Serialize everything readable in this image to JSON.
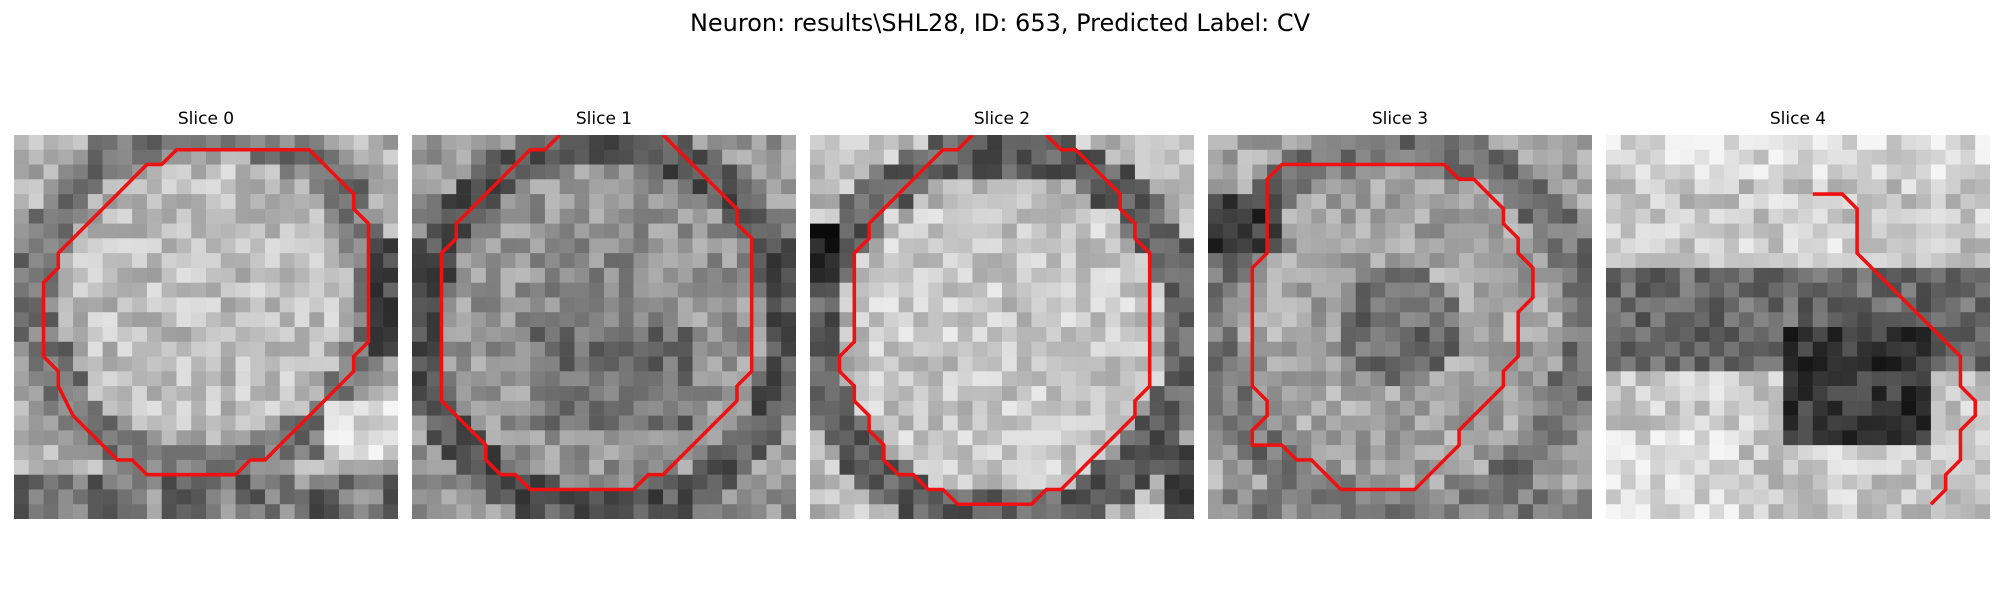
{
  "title": "Neuron: results\\SHL28, ID: 653, Predicted Label: CV",
  "contour_color": "#ee1111",
  "slices": [
    {
      "title": "Slice 0",
      "image": "grayscale-microscopy-patch",
      "contour": [
        [
          14,
          1
        ],
        [
          17,
          1
        ],
        [
          20,
          1
        ],
        [
          21,
          2
        ],
        [
          22,
          3
        ],
        [
          23,
          4
        ],
        [
          23,
          5
        ],
        [
          24,
          6
        ],
        [
          24,
          7
        ],
        [
          24,
          8
        ],
        [
          24,
          9
        ],
        [
          24,
          10
        ],
        [
          24,
          11
        ],
        [
          24,
          12
        ],
        [
          24,
          13
        ],
        [
          24,
          14
        ],
        [
          23,
          15
        ],
        [
          23,
          16
        ],
        [
          22,
          17
        ],
        [
          21,
          18
        ],
        [
          20,
          19
        ],
        [
          19,
          20
        ],
        [
          18,
          21
        ],
        [
          17,
          22
        ],
        [
          16,
          22
        ],
        [
          15,
          23
        ],
        [
          14,
          23
        ],
        [
          13,
          23
        ],
        [
          12,
          23
        ],
        [
          11,
          23
        ],
        [
          10,
          23
        ],
        [
          9,
          23
        ],
        [
          8,
          22
        ],
        [
          7,
          22
        ],
        [
          6,
          21
        ],
        [
          5,
          20
        ],
        [
          4,
          19
        ],
        [
          3,
          17
        ],
        [
          3,
          16
        ],
        [
          2,
          15
        ],
        [
          2,
          14
        ],
        [
          2,
          13
        ],
        [
          2,
          12
        ],
        [
          2,
          11
        ],
        [
          2,
          10
        ],
        [
          3,
          9
        ],
        [
          3,
          8
        ],
        [
          4,
          7
        ],
        [
          5,
          6
        ],
        [
          6,
          5
        ],
        [
          7,
          4
        ],
        [
          8,
          3
        ],
        [
          9,
          2
        ],
        [
          10,
          2
        ],
        [
          11,
          1
        ],
        [
          12,
          1
        ],
        [
          14,
          1
        ]
      ]
    },
    {
      "title": "Slice 1",
      "image": "grayscale-microscopy-patch",
      "contour": [
        [
          10,
          0
        ],
        [
          9,
          1
        ],
        [
          8,
          1
        ],
        [
          7,
          2
        ],
        [
          6,
          3
        ],
        [
          5,
          4
        ],
        [
          4,
          5
        ],
        [
          3,
          6
        ],
        [
          3,
          7
        ],
        [
          2,
          8
        ],
        [
          2,
          9
        ],
        [
          2,
          10
        ],
        [
          2,
          11
        ],
        [
          2,
          12
        ],
        [
          2,
          13
        ],
        [
          2,
          14
        ],
        [
          2,
          15
        ],
        [
          2,
          16
        ],
        [
          2,
          17
        ],
        [
          2,
          18
        ],
        [
          3,
          19
        ],
        [
          4,
          20
        ],
        [
          5,
          21
        ],
        [
          5,
          22
        ],
        [
          6,
          23
        ],
        [
          7,
          23
        ],
        [
          8,
          24
        ],
        [
          9,
          24
        ],
        [
          10,
          24
        ],
        [
          11,
          24
        ],
        [
          12,
          24
        ],
        [
          13,
          24
        ],
        [
          14,
          24
        ],
        [
          15,
          24
        ],
        [
          16,
          23
        ],
        [
          17,
          23
        ],
        [
          18,
          22
        ],
        [
          19,
          21
        ],
        [
          20,
          20
        ],
        [
          21,
          19
        ],
        [
          22,
          18
        ],
        [
          22,
          17
        ],
        [
          23,
          16
        ],
        [
          23,
          15
        ],
        [
          23,
          14
        ],
        [
          23,
          13
        ],
        [
          23,
          12
        ],
        [
          23,
          11
        ],
        [
          23,
          10
        ],
        [
          23,
          9
        ],
        [
          23,
          8
        ],
        [
          23,
          7
        ],
        [
          22,
          6
        ],
        [
          22,
          5
        ],
        [
          21,
          4
        ],
        [
          20,
          3
        ],
        [
          19,
          2
        ],
        [
          18,
          1
        ],
        [
          17,
          0
        ]
      ]
    },
    {
      "title": "Slice 2",
      "image": "grayscale-microscopy-patch",
      "contour": [
        [
          11,
          0
        ],
        [
          10,
          1
        ],
        [
          9,
          1
        ],
        [
          8,
          2
        ],
        [
          7,
          3
        ],
        [
          6,
          4
        ],
        [
          5,
          5
        ],
        [
          4,
          6
        ],
        [
          4,
          7
        ],
        [
          3,
          8
        ],
        [
          3,
          9
        ],
        [
          3,
          10
        ],
        [
          3,
          11
        ],
        [
          3,
          12
        ],
        [
          3,
          13
        ],
        [
          3,
          14
        ],
        [
          2,
          15
        ],
        [
          2,
          16
        ],
        [
          3,
          17
        ],
        [
          3,
          18
        ],
        [
          4,
          19
        ],
        [
          4,
          20
        ],
        [
          5,
          21
        ],
        [
          5,
          22
        ],
        [
          6,
          23
        ],
        [
          7,
          23
        ],
        [
          8,
          24
        ],
        [
          9,
          24
        ],
        [
          10,
          25
        ],
        [
          11,
          25
        ],
        [
          12,
          25
        ],
        [
          13,
          25
        ],
        [
          14,
          25
        ],
        [
          15,
          25
        ],
        [
          16,
          24
        ],
        [
          17,
          24
        ],
        [
          18,
          23
        ],
        [
          19,
          22
        ],
        [
          20,
          21
        ],
        [
          21,
          20
        ],
        [
          22,
          19
        ],
        [
          22,
          18
        ],
        [
          23,
          17
        ],
        [
          23,
          16
        ],
        [
          23,
          15
        ],
        [
          23,
          14
        ],
        [
          23,
          13
        ],
        [
          23,
          12
        ],
        [
          23,
          11
        ],
        [
          23,
          10
        ],
        [
          23,
          9
        ],
        [
          23,
          8
        ],
        [
          22,
          7
        ],
        [
          22,
          6
        ],
        [
          21,
          5
        ],
        [
          21,
          4
        ],
        [
          20,
          3
        ],
        [
          19,
          2
        ],
        [
          18,
          1
        ],
        [
          17,
          1
        ],
        [
          16,
          0
        ]
      ]
    },
    {
      "title": "Slice 3",
      "image": "grayscale-microscopy-patch",
      "contour": [
        [
          10,
          2
        ],
        [
          11,
          2
        ],
        [
          12,
          2
        ],
        [
          13,
          2
        ],
        [
          14,
          2
        ],
        [
          15,
          2
        ],
        [
          16,
          2
        ],
        [
          17,
          3
        ],
        [
          18,
          3
        ],
        [
          19,
          4
        ],
        [
          20,
          5
        ],
        [
          20,
          6
        ],
        [
          21,
          7
        ],
        [
          21,
          8
        ],
        [
          22,
          9
        ],
        [
          22,
          10
        ],
        [
          22,
          11
        ],
        [
          21,
          12
        ],
        [
          21,
          13
        ],
        [
          21,
          14
        ],
        [
          21,
          15
        ],
        [
          20,
          16
        ],
        [
          20,
          17
        ],
        [
          19,
          18
        ],
        [
          18,
          19
        ],
        [
          17,
          20
        ],
        [
          17,
          21
        ],
        [
          16,
          22
        ],
        [
          15,
          23
        ],
        [
          14,
          24
        ],
        [
          13,
          24
        ],
        [
          12,
          24
        ],
        [
          11,
          24
        ],
        [
          10,
          24
        ],
        [
          9,
          24
        ],
        [
          8,
          23
        ],
        [
          7,
          22
        ],
        [
          6,
          22
        ],
        [
          5,
          21
        ],
        [
          4,
          21
        ],
        [
          3,
          21
        ],
        [
          3,
          20
        ],
        [
          4,
          19
        ],
        [
          4,
          18
        ],
        [
          3,
          17
        ],
        [
          3,
          16
        ],
        [
          3,
          15
        ],
        [
          3,
          14
        ],
        [
          3,
          13
        ],
        [
          3,
          12
        ],
        [
          3,
          11
        ],
        [
          3,
          10
        ],
        [
          3,
          9
        ],
        [
          4,
          8
        ],
        [
          4,
          7
        ],
        [
          4,
          6
        ],
        [
          4,
          5
        ],
        [
          4,
          4
        ],
        [
          4,
          3
        ],
        [
          5,
          2
        ],
        [
          6,
          2
        ],
        [
          7,
          2
        ],
        [
          8,
          2
        ],
        [
          9,
          2
        ],
        [
          10,
          2
        ]
      ]
    },
    {
      "title": "Slice 4",
      "image": "grayscale-microscopy-patch",
      "contour": [
        [
          14,
          4
        ],
        [
          15,
          4
        ],
        [
          16,
          4
        ],
        [
          17,
          5
        ],
        [
          17,
          6
        ],
        [
          17,
          7
        ],
        [
          17,
          8
        ],
        [
          18,
          9
        ],
        [
          19,
          10
        ],
        [
          20,
          11
        ],
        [
          21,
          12
        ],
        [
          22,
          13
        ],
        [
          23,
          14
        ],
        [
          24,
          15
        ],
        [
          24,
          16
        ],
        [
          24,
          17
        ],
        [
          25,
          18
        ],
        [
          25,
          19
        ],
        [
          24,
          20
        ],
        [
          24,
          21
        ],
        [
          24,
          22
        ],
        [
          23,
          23
        ],
        [
          23,
          24
        ],
        [
          22,
          25
        ]
      ]
    }
  ]
}
